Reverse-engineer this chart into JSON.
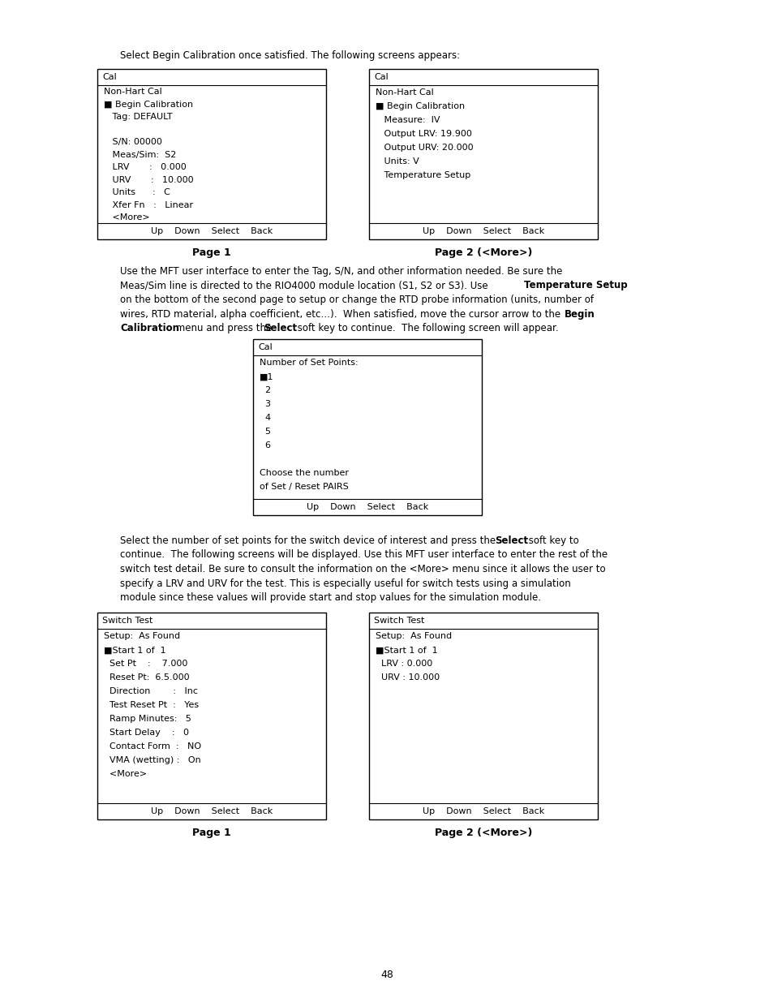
{
  "bg_color": "#ffffff",
  "page_number": "48",
  "intro_text": "Select Begin Calibration once satisfied. The following screens appears:",
  "box1_title": "Cal",
  "box1_lines": [
    "Non-Hart Cal",
    "■ Begin Calibration",
    "   Tag: DEFAULT",
    "",
    "   S/N: 00000",
    "   Meas/Sim:  S2",
    "   LRV       :   0.000",
    "   URV       :   10.000",
    "   Units      :   C",
    "   Xfer Fn   :   Linear",
    "   <More>"
  ],
  "box1_footer": "Up    Down    Select    Back",
  "box1_label": "Page 1",
  "box2_title": "Cal",
  "box2_lines": [
    "Non-Hart Cal",
    "■ Begin Calibration",
    "   Measure:  IV",
    "   Output LRV: 19.900",
    "   Output URV: 20.000",
    "   Units: V",
    "   Temperature Setup"
  ],
  "box2_footer": "Up    Down    Select    Back",
  "box2_label": "Page 2 (<More>)",
  "box3_title": "Cal",
  "box3_lines": [
    "Number of Set Points:",
    "■1",
    "  2",
    "  3",
    "  4",
    "  5",
    "  6",
    "",
    "Choose the number",
    "of Set / Reset PAIRS"
  ],
  "box3_footer": "Up    Down    Select    Back",
  "box4_title": "Switch Test",
  "box4_lines": [
    "Setup:  As Found",
    "■Start 1 of  1",
    "  Set Pt    :    7.000",
    "  Reset Pt:  6.5.000",
    "  Direction        :   Inc",
    "  Test Reset Pt  :   Yes",
    "  Ramp Minutes:   5",
    "  Start Delay    :   0",
    "  Contact Form  :   NO",
    "  VMA (wetting) :   On",
    "  <More>"
  ],
  "box4_footer": "Up    Down    Select    Back",
  "box4_label": "Page 1",
  "box5_title": "Switch Test",
  "box5_lines": [
    "Setup:  As Found",
    "■Start 1 of  1",
    "  LRV : 0.000",
    "  URV : 10.000"
  ],
  "box5_footer": "Up    Down    Select    Back",
  "box5_label": "Page 2 (<More>)"
}
